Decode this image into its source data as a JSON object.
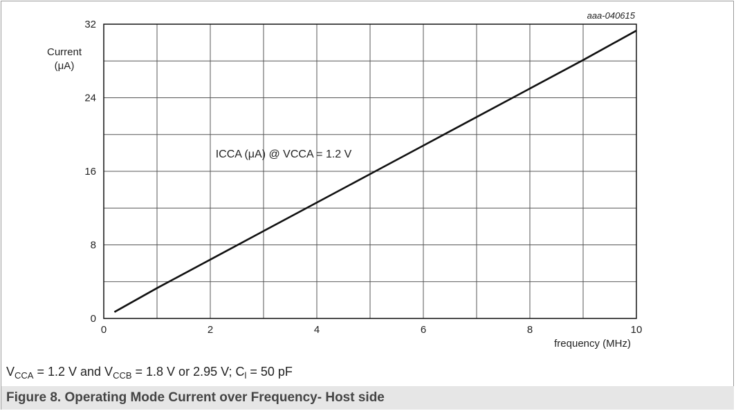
{
  "chart_data": {
    "type": "line",
    "figure_id": "aaa-040615",
    "ylabel_line1": "Current",
    "ylabel_line2": "(μA)",
    "xlabel": "frequency (MHz)",
    "xlim": [
      0,
      10
    ],
    "ylim": [
      0,
      32
    ],
    "x_ticks": [
      0,
      2,
      4,
      6,
      8,
      10
    ],
    "y_ticks": [
      0,
      8,
      16,
      24,
      32
    ],
    "x_grid_step": 1,
    "y_grid_step": 4,
    "grid": true,
    "series": [
      {
        "annotation": "ICCA (μA) @ VCCA = 1.2 V",
        "annotation_at": [
          2.1,
          17.5
        ],
        "x": [
          0.2,
          1,
          2,
          3,
          4,
          5,
          6,
          7,
          8,
          9,
          10
        ],
        "y": [
          0.7,
          3.3,
          6.4,
          9.5,
          12.6,
          15.7,
          18.8,
          21.9,
          25.0,
          28.1,
          31.3
        ],
        "color": "#111111"
      }
    ]
  },
  "conditions": {
    "v1": "V",
    "v1_sub": "CCA",
    "t1": " = 1.2 V and ",
    "v2": "V",
    "v2_sub": "CCB",
    "t2": " = 1.8 V or 2.95 V; ",
    "c": "C",
    "c_sub": "l",
    "t3": " = 50 pF"
  },
  "caption": "Figure 8.  Operating Mode Current over Frequency- Host side"
}
